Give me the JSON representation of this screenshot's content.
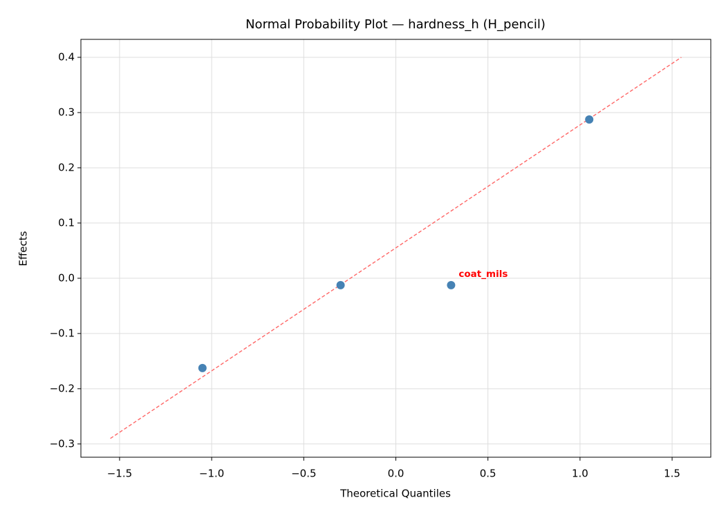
{
  "chart_data": {
    "type": "scatter",
    "title": "Normal Probability Plot — hardness_h (H_pencil)",
    "x_label": "Theoretical Quantiles",
    "y_label": "Effects",
    "x": [
      -1.05,
      -0.3,
      0.3,
      1.05
    ],
    "series": [
      {
        "color": "#4682b4",
        "values": [
          -0.1625,
          -0.0125,
          -0.0125,
          0.2875
        ]
      }
    ],
    "reference_line": {
      "x": [
        -1.55,
        1.55
      ],
      "y": [
        -0.29,
        0.4
      ],
      "color": "#ff6666"
    },
    "annotations": [
      {
        "text": "coat_mils",
        "x": 0.3,
        "y": -0.0125,
        "color": "#ff0000"
      }
    ],
    "xlim": [
      -1.71,
      1.71
    ],
    "ylim": [
      -0.324,
      0.4325
    ],
    "xticks": [
      {
        "value": -1.5,
        "label": "−1.5"
      },
      {
        "value": -1.0,
        "label": "−1.0"
      },
      {
        "value": -0.5,
        "label": "−0.5"
      },
      {
        "value": 0,
        "label": "0.0"
      },
      0.5,
      {
        "value": 1.0,
        "label": "1.0"
      },
      1.5
    ],
    "yticks": [
      {
        "value": -0.3,
        "label": "−0.3"
      },
      {
        "value": -0.2,
        "label": "−0.2"
      },
      {
        "value": -0.1,
        "label": "−0.1"
      },
      {
        "value": 0,
        "label": "0.0"
      },
      0.1,
      0.2,
      0.3,
      0.4
    ],
    "grid": true
  }
}
